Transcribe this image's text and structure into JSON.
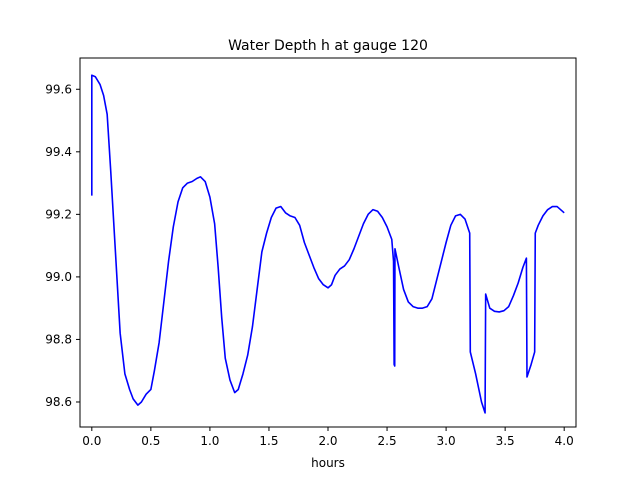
{
  "chart_data": {
    "type": "line",
    "title": "Water Depth h at gauge 120",
    "xlabel": "hours",
    "ylabel": "",
    "xlim": [
      -0.1,
      4.1
    ],
    "ylim": [
      98.52,
      99.7
    ],
    "x_ticks": [
      0.0,
      0.5,
      1.0,
      1.5,
      2.0,
      2.5,
      3.0,
      3.5,
      4.0
    ],
    "x_tick_labels": [
      "0.0",
      "0.5",
      "1.0",
      "1.5",
      "2.0",
      "2.5",
      "3.0",
      "3.5",
      "4.0"
    ],
    "y_ticks": [
      98.6,
      98.8,
      99.0,
      99.2,
      99.4,
      99.6
    ],
    "y_tick_labels": [
      "98.6",
      "98.8",
      "99.0",
      "99.2",
      "99.4",
      "99.6"
    ],
    "grid": false,
    "legend": "none",
    "series": [
      {
        "color": "#0000ff",
        "points": [
          [
            0.0,
            99.26
          ],
          [
            0.0,
            99.645
          ],
          [
            0.03,
            99.64
          ],
          [
            0.07,
            99.615
          ],
          [
            0.1,
            99.58
          ],
          [
            0.13,
            99.52
          ],
          [
            0.16,
            99.34
          ],
          [
            0.2,
            99.08
          ],
          [
            0.24,
            98.82
          ],
          [
            0.28,
            98.69
          ],
          [
            0.32,
            98.64
          ],
          [
            0.35,
            98.61
          ],
          [
            0.39,
            98.59
          ],
          [
            0.42,
            98.6
          ],
          [
            0.46,
            98.625
          ],
          [
            0.5,
            98.64
          ],
          [
            0.53,
            98.7
          ],
          [
            0.57,
            98.79
          ],
          [
            0.61,
            98.92
          ],
          [
            0.65,
            99.05
          ],
          [
            0.69,
            99.16
          ],
          [
            0.73,
            99.24
          ],
          [
            0.77,
            99.285
          ],
          [
            0.81,
            99.3
          ],
          [
            0.85,
            99.305
          ],
          [
            0.89,
            99.315
          ],
          [
            0.92,
            99.32
          ],
          [
            0.96,
            99.305
          ],
          [
            1.0,
            99.255
          ],
          [
            1.04,
            99.17
          ],
          [
            1.07,
            99.03
          ],
          [
            1.1,
            98.87
          ],
          [
            1.13,
            98.74
          ],
          [
            1.17,
            98.67
          ],
          [
            1.21,
            98.63
          ],
          [
            1.24,
            98.64
          ],
          [
            1.28,
            98.69
          ],
          [
            1.32,
            98.75
          ],
          [
            1.36,
            98.84
          ],
          [
            1.4,
            98.96
          ],
          [
            1.44,
            99.08
          ],
          [
            1.48,
            99.14
          ],
          [
            1.52,
            99.19
          ],
          [
            1.56,
            99.22
          ],
          [
            1.6,
            99.225
          ],
          [
            1.64,
            99.205
          ],
          [
            1.68,
            99.195
          ],
          [
            1.72,
            99.19
          ],
          [
            1.76,
            99.165
          ],
          [
            1.8,
            99.11
          ],
          [
            1.84,
            99.07
          ],
          [
            1.88,
            99.03
          ],
          [
            1.92,
            98.995
          ],
          [
            1.96,
            98.975
          ],
          [
            2.0,
            98.965
          ],
          [
            2.03,
            98.975
          ],
          [
            2.06,
            99.005
          ],
          [
            2.1,
            99.025
          ],
          [
            2.14,
            99.035
          ],
          [
            2.18,
            99.055
          ],
          [
            2.22,
            99.09
          ],
          [
            2.26,
            99.13
          ],
          [
            2.3,
            99.17
          ],
          [
            2.34,
            99.2
          ],
          [
            2.38,
            99.215
          ],
          [
            2.42,
            99.21
          ],
          [
            2.46,
            99.19
          ],
          [
            2.5,
            99.16
          ],
          [
            2.54,
            99.12
          ],
          [
            2.555,
            99.05
          ],
          [
            2.56,
            98.72
          ],
          [
            2.565,
            98.715
          ],
          [
            2.567,
            99.09
          ],
          [
            2.6,
            99.03
          ],
          [
            2.64,
            98.96
          ],
          [
            2.68,
            98.92
          ],
          [
            2.72,
            98.905
          ],
          [
            2.76,
            98.9
          ],
          [
            2.8,
            98.9
          ],
          [
            2.84,
            98.905
          ],
          [
            2.88,
            98.93
          ],
          [
            2.92,
            98.99
          ],
          [
            2.96,
            99.05
          ],
          [
            3.0,
            99.11
          ],
          [
            3.04,
            99.165
          ],
          [
            3.08,
            99.195
          ],
          [
            3.12,
            99.2
          ],
          [
            3.16,
            99.185
          ],
          [
            3.2,
            99.14
          ],
          [
            3.205,
            98.76
          ],
          [
            3.25,
            98.69
          ],
          [
            3.3,
            98.6
          ],
          [
            3.33,
            98.565
          ],
          [
            3.335,
            98.945
          ],
          [
            3.37,
            98.9
          ],
          [
            3.41,
            98.89
          ],
          [
            3.45,
            98.888
          ],
          [
            3.49,
            98.892
          ],
          [
            3.53,
            98.905
          ],
          [
            3.57,
            98.94
          ],
          [
            3.61,
            98.98
          ],
          [
            3.65,
            99.03
          ],
          [
            3.68,
            99.06
          ],
          [
            3.685,
            98.68
          ],
          [
            3.72,
            98.72
          ],
          [
            3.75,
            98.76
          ],
          [
            3.755,
            99.14
          ],
          [
            3.78,
            99.165
          ],
          [
            3.82,
            99.195
          ],
          [
            3.86,
            99.215
          ],
          [
            3.9,
            99.225
          ],
          [
            3.94,
            99.225
          ],
          [
            3.97,
            99.215
          ],
          [
            4.0,
            99.205
          ]
        ]
      }
    ]
  }
}
